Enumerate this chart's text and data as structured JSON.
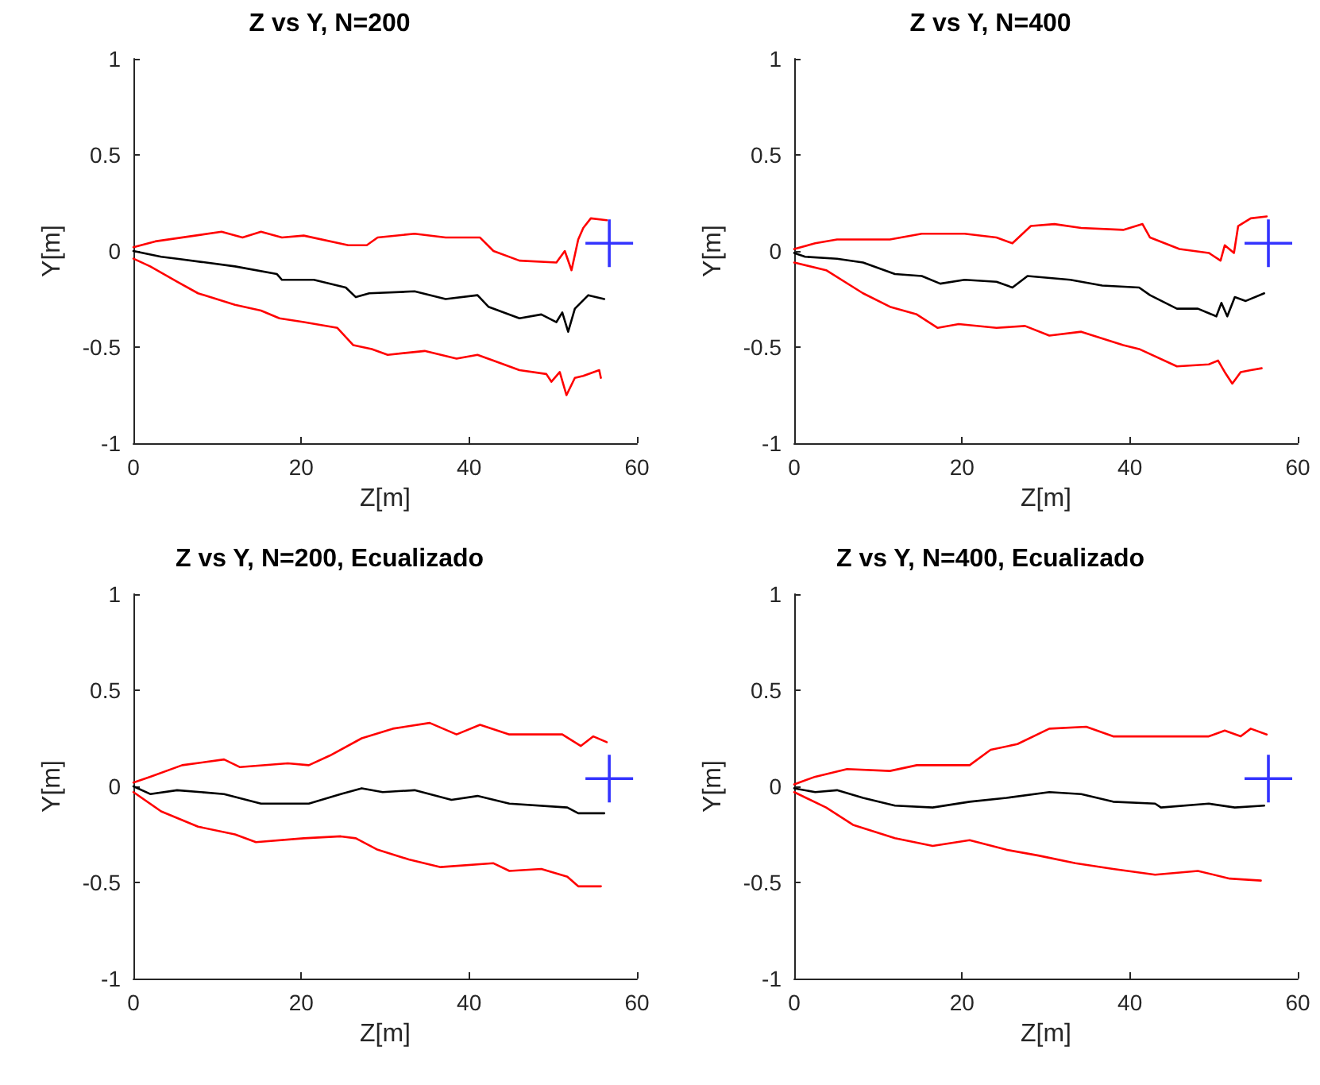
{
  "chart_data": [
    {
      "type": "line",
      "title": "Z vs Y, N=200",
      "xlabel": "Z[m]",
      "ylabel": "Y[m]",
      "xlim": [
        0,
        60
      ],
      "xticks": [
        0,
        20,
        40,
        60
      ],
      "ylim": [
        -1,
        1
      ],
      "yticks": [
        -1,
        -0.5,
        0,
        0.5,
        1
      ],
      "grid": false,
      "marker": "none",
      "line_style": "solid",
      "series": [
        {
          "color": "#ff0000",
          "x": [
            0,
            2.6,
            10.5,
            13.0,
            15.2,
            17.7,
            20.3,
            25.6,
            27.8,
            29.1,
            33.5,
            37.2,
            41.3,
            42.9,
            46,
            50.4,
            51.4,
            52.2,
            53,
            53.6,
            54.5,
            56.4
          ],
          "values": [
            0.02,
            0.05,
            0.1,
            0.07,
            0.1,
            0.07,
            0.08,
            0.03,
            0.03,
            0.07,
            0.09,
            0.07,
            0.07,
            0.0,
            -0.05,
            -0.06,
            0.0,
            -0.1,
            0.06,
            0.12,
            0.17,
            0.16
          ]
        },
        {
          "color": "#000000",
          "x": [
            0,
            3.3,
            5.2,
            12.1,
            17.1,
            17.7,
            21.5,
            25.3,
            26.5,
            28.1,
            33.5,
            37.2,
            41,
            42.3,
            46,
            48.6,
            50.4,
            51.1,
            51.8,
            52.6,
            54.2,
            56.1
          ],
          "values": [
            0,
            -0.03,
            -0.04,
            -0.08,
            -0.12,
            -0.15,
            -0.15,
            -0.19,
            -0.24,
            -0.22,
            -0.21,
            -0.25,
            -0.23,
            -0.29,
            -0.35,
            -0.33,
            -0.37,
            -0.32,
            -0.42,
            -0.3,
            -0.23,
            -0.25
          ]
        },
        {
          "color": "#ff0000",
          "x": [
            0,
            2,
            5.2,
            7.7,
            12.1,
            15.2,
            17.4,
            20.3,
            24.3,
            26.2,
            28.4,
            30.3,
            34.7,
            38.5,
            41,
            42.9,
            46,
            49.2,
            49.8,
            50.8,
            51.6,
            52.6,
            53.6,
            55.5,
            55.7
          ],
          "values": [
            -0.04,
            -0.08,
            -0.16,
            -0.22,
            -0.28,
            -0.31,
            -0.35,
            -0.37,
            -0.4,
            -0.49,
            -0.51,
            -0.54,
            -0.52,
            -0.56,
            -0.54,
            -0.57,
            -0.62,
            -0.64,
            -0.68,
            -0.63,
            -0.75,
            -0.66,
            -0.65,
            -0.62,
            -0.66
          ]
        },
        {
          "type": "scatter",
          "marker": "cross",
          "color": "#0000ff",
          "x": [
            56.7
          ],
          "values": [
            0.04
          ]
        }
      ]
    },
    {
      "type": "line",
      "title": "Z vs Y, N=400",
      "xlabel": "Z[m]",
      "ylabel": "Y[m]",
      "xlim": [
        0,
        60
      ],
      "xticks": [
        0,
        20,
        40,
        60
      ],
      "ylim": [
        -1,
        1
      ],
      "yticks": [
        -1,
        -0.5,
        0,
        0.5,
        1
      ],
      "grid": false,
      "marker": "none",
      "line_style": "solid",
      "series": [
        {
          "color": "#ff0000",
          "x": [
            0,
            2.5,
            5.1,
            11.4,
            15.2,
            20.3,
            24.1,
            26,
            28.2,
            31,
            34.2,
            39.2,
            41.5,
            42.4,
            45.9,
            49.4,
            50.8,
            51.3,
            52.4,
            52.9,
            54.4,
            56.3
          ],
          "values": [
            0.01,
            0.04,
            0.06,
            0.06,
            0.09,
            0.09,
            0.07,
            0.04,
            0.13,
            0.14,
            0.12,
            0.11,
            0.14,
            0.07,
            0.01,
            -0.01,
            -0.05,
            0.03,
            -0.01,
            0.13,
            0.17,
            0.18
          ]
        },
        {
          "color": "#000000",
          "x": [
            0,
            1.3,
            5.1,
            8.2,
            12,
            15.2,
            17.4,
            20.3,
            24.1,
            26,
            27.8,
            32.9,
            36.7,
            41.1,
            42.4,
            45.6,
            48.1,
            50.3,
            50.9,
            51.6,
            52.5,
            53.8,
            56
          ],
          "values": [
            -0.01,
            -0.03,
            -0.04,
            -0.06,
            -0.12,
            -0.13,
            -0.17,
            -0.15,
            -0.16,
            -0.19,
            -0.13,
            -0.15,
            -0.18,
            -0.19,
            -0.23,
            -0.3,
            -0.3,
            -0.34,
            -0.27,
            -0.34,
            -0.24,
            -0.26,
            -0.22
          ]
        },
        {
          "color": "#ff0000",
          "x": [
            0,
            3.8,
            8.2,
            11.4,
            14.6,
            17.1,
            19.6,
            24.1,
            27.5,
            30.4,
            34.2,
            39.2,
            41.1,
            45.6,
            49.4,
            50.5,
            51.3,
            52.2,
            53.2,
            54.4,
            55.7
          ],
          "values": [
            -0.06,
            -0.1,
            -0.22,
            -0.29,
            -0.33,
            -0.4,
            -0.38,
            -0.4,
            -0.39,
            -0.44,
            -0.42,
            -0.49,
            -0.51,
            -0.6,
            -0.59,
            -0.57,
            -0.63,
            -0.69,
            -0.63,
            -0.62,
            -0.61
          ]
        },
        {
          "type": "scatter",
          "marker": "cross",
          "color": "#0000ff",
          "x": [
            56.5
          ],
          "values": [
            0.04
          ]
        }
      ]
    },
    {
      "type": "line",
      "title": "Z vs Y, N=200, Ecualizado",
      "xlabel": "Z[m]",
      "ylabel": "Y[m]",
      "xlim": [
        0,
        60
      ],
      "xticks": [
        0,
        20,
        40,
        60
      ],
      "ylim": [
        -1,
        1
      ],
      "yticks": [
        -1,
        -0.5,
        0,
        0.5,
        1
      ],
      "grid": false,
      "marker": "none",
      "line_style": "solid",
      "series": [
        {
          "color": "#ff0000",
          "x": [
            0,
            2,
            5.8,
            10.8,
            12.7,
            18.4,
            20.9,
            23.4,
            27.2,
            30.9,
            35.3,
            38.5,
            41.3,
            44.8,
            51.1,
            53.3,
            54.8,
            56.4
          ],
          "values": [
            0.02,
            0.05,
            0.11,
            0.14,
            0.1,
            0.12,
            0.11,
            0.16,
            0.25,
            0.3,
            0.33,
            0.27,
            0.32,
            0.27,
            0.27,
            0.21,
            0.26,
            0.23
          ]
        },
        {
          "color": "#000000",
          "x": [
            0,
            2,
            5.2,
            10.8,
            15.2,
            20.9,
            24.7,
            27.2,
            29.7,
            33.5,
            37.9,
            41,
            44.8,
            51.7,
            53,
            56.1
          ],
          "values": [
            0,
            -0.04,
            -0.02,
            -0.04,
            -0.09,
            -0.09,
            -0.04,
            -0.01,
            -0.03,
            -0.02,
            -0.07,
            -0.05,
            -0.09,
            -0.11,
            -0.14,
            -0.14
          ]
        },
        {
          "color": "#ff0000",
          "x": [
            0,
            3.3,
            7.7,
            12.1,
            14.6,
            20.3,
            24.7,
            26.5,
            29.1,
            32.8,
            36.6,
            42.9,
            44.8,
            48.6,
            51.7,
            53,
            55.7
          ],
          "values": [
            -0.03,
            -0.13,
            -0.21,
            -0.25,
            -0.29,
            -0.27,
            -0.26,
            -0.27,
            -0.33,
            -0.38,
            -0.42,
            -0.4,
            -0.44,
            -0.43,
            -0.47,
            -0.52,
            -0.52
          ]
        },
        {
          "type": "scatter",
          "marker": "cross",
          "color": "#0000ff",
          "x": [
            56.7
          ],
          "values": [
            0.04
          ]
        }
      ]
    },
    {
      "type": "line",
      "title": "Z vs Y, N=400, Ecualizado",
      "xlabel": "Z[m]",
      "ylabel": "Y[m]",
      "xlim": [
        0,
        60
      ],
      "xticks": [
        0,
        20,
        40,
        60
      ],
      "ylim": [
        -1,
        1
      ],
      "yticks": [
        -1,
        -0.5,
        0,
        0.5,
        1
      ],
      "grid": false,
      "marker": "none",
      "line_style": "solid",
      "series": [
        {
          "color": "#ff0000",
          "x": [
            0,
            2.5,
            6.3,
            11.4,
            14.6,
            20.9,
            23.4,
            26.6,
            30.4,
            34.8,
            38,
            43,
            49.4,
            51.3,
            53.2,
            54.4,
            56.3
          ],
          "values": [
            0.01,
            0.05,
            0.09,
            0.08,
            0.11,
            0.11,
            0.19,
            0.22,
            0.3,
            0.31,
            0.26,
            0.26,
            0.26,
            0.29,
            0.26,
            0.3,
            0.27
          ]
        },
        {
          "color": "#000000",
          "x": [
            0,
            2.5,
            5.1,
            8.2,
            12,
            16.5,
            20.9,
            25.3,
            30.4,
            34.2,
            38,
            43,
            43.7,
            49.4,
            52.5,
            56
          ],
          "values": [
            -0.01,
            -0.03,
            -0.02,
            -0.06,
            -0.1,
            -0.11,
            -0.08,
            -0.06,
            -0.03,
            -0.04,
            -0.08,
            -0.09,
            -0.11,
            -0.09,
            -0.11,
            -0.1
          ]
        },
        {
          "color": "#ff0000",
          "x": [
            0,
            3.8,
            7,
            12,
            16.5,
            20.9,
            25.3,
            29.1,
            33.5,
            38,
            43,
            48.1,
            51.9,
            55.6
          ],
          "values": [
            -0.03,
            -0.11,
            -0.2,
            -0.27,
            -0.31,
            -0.28,
            -0.33,
            -0.36,
            -0.4,
            -0.43,
            -0.46,
            -0.44,
            -0.48,
            -0.49
          ]
        },
        {
          "type": "scatter",
          "marker": "cross",
          "color": "#0000ff",
          "x": [
            56.5
          ],
          "values": [
            0.04
          ]
        }
      ]
    }
  ]
}
